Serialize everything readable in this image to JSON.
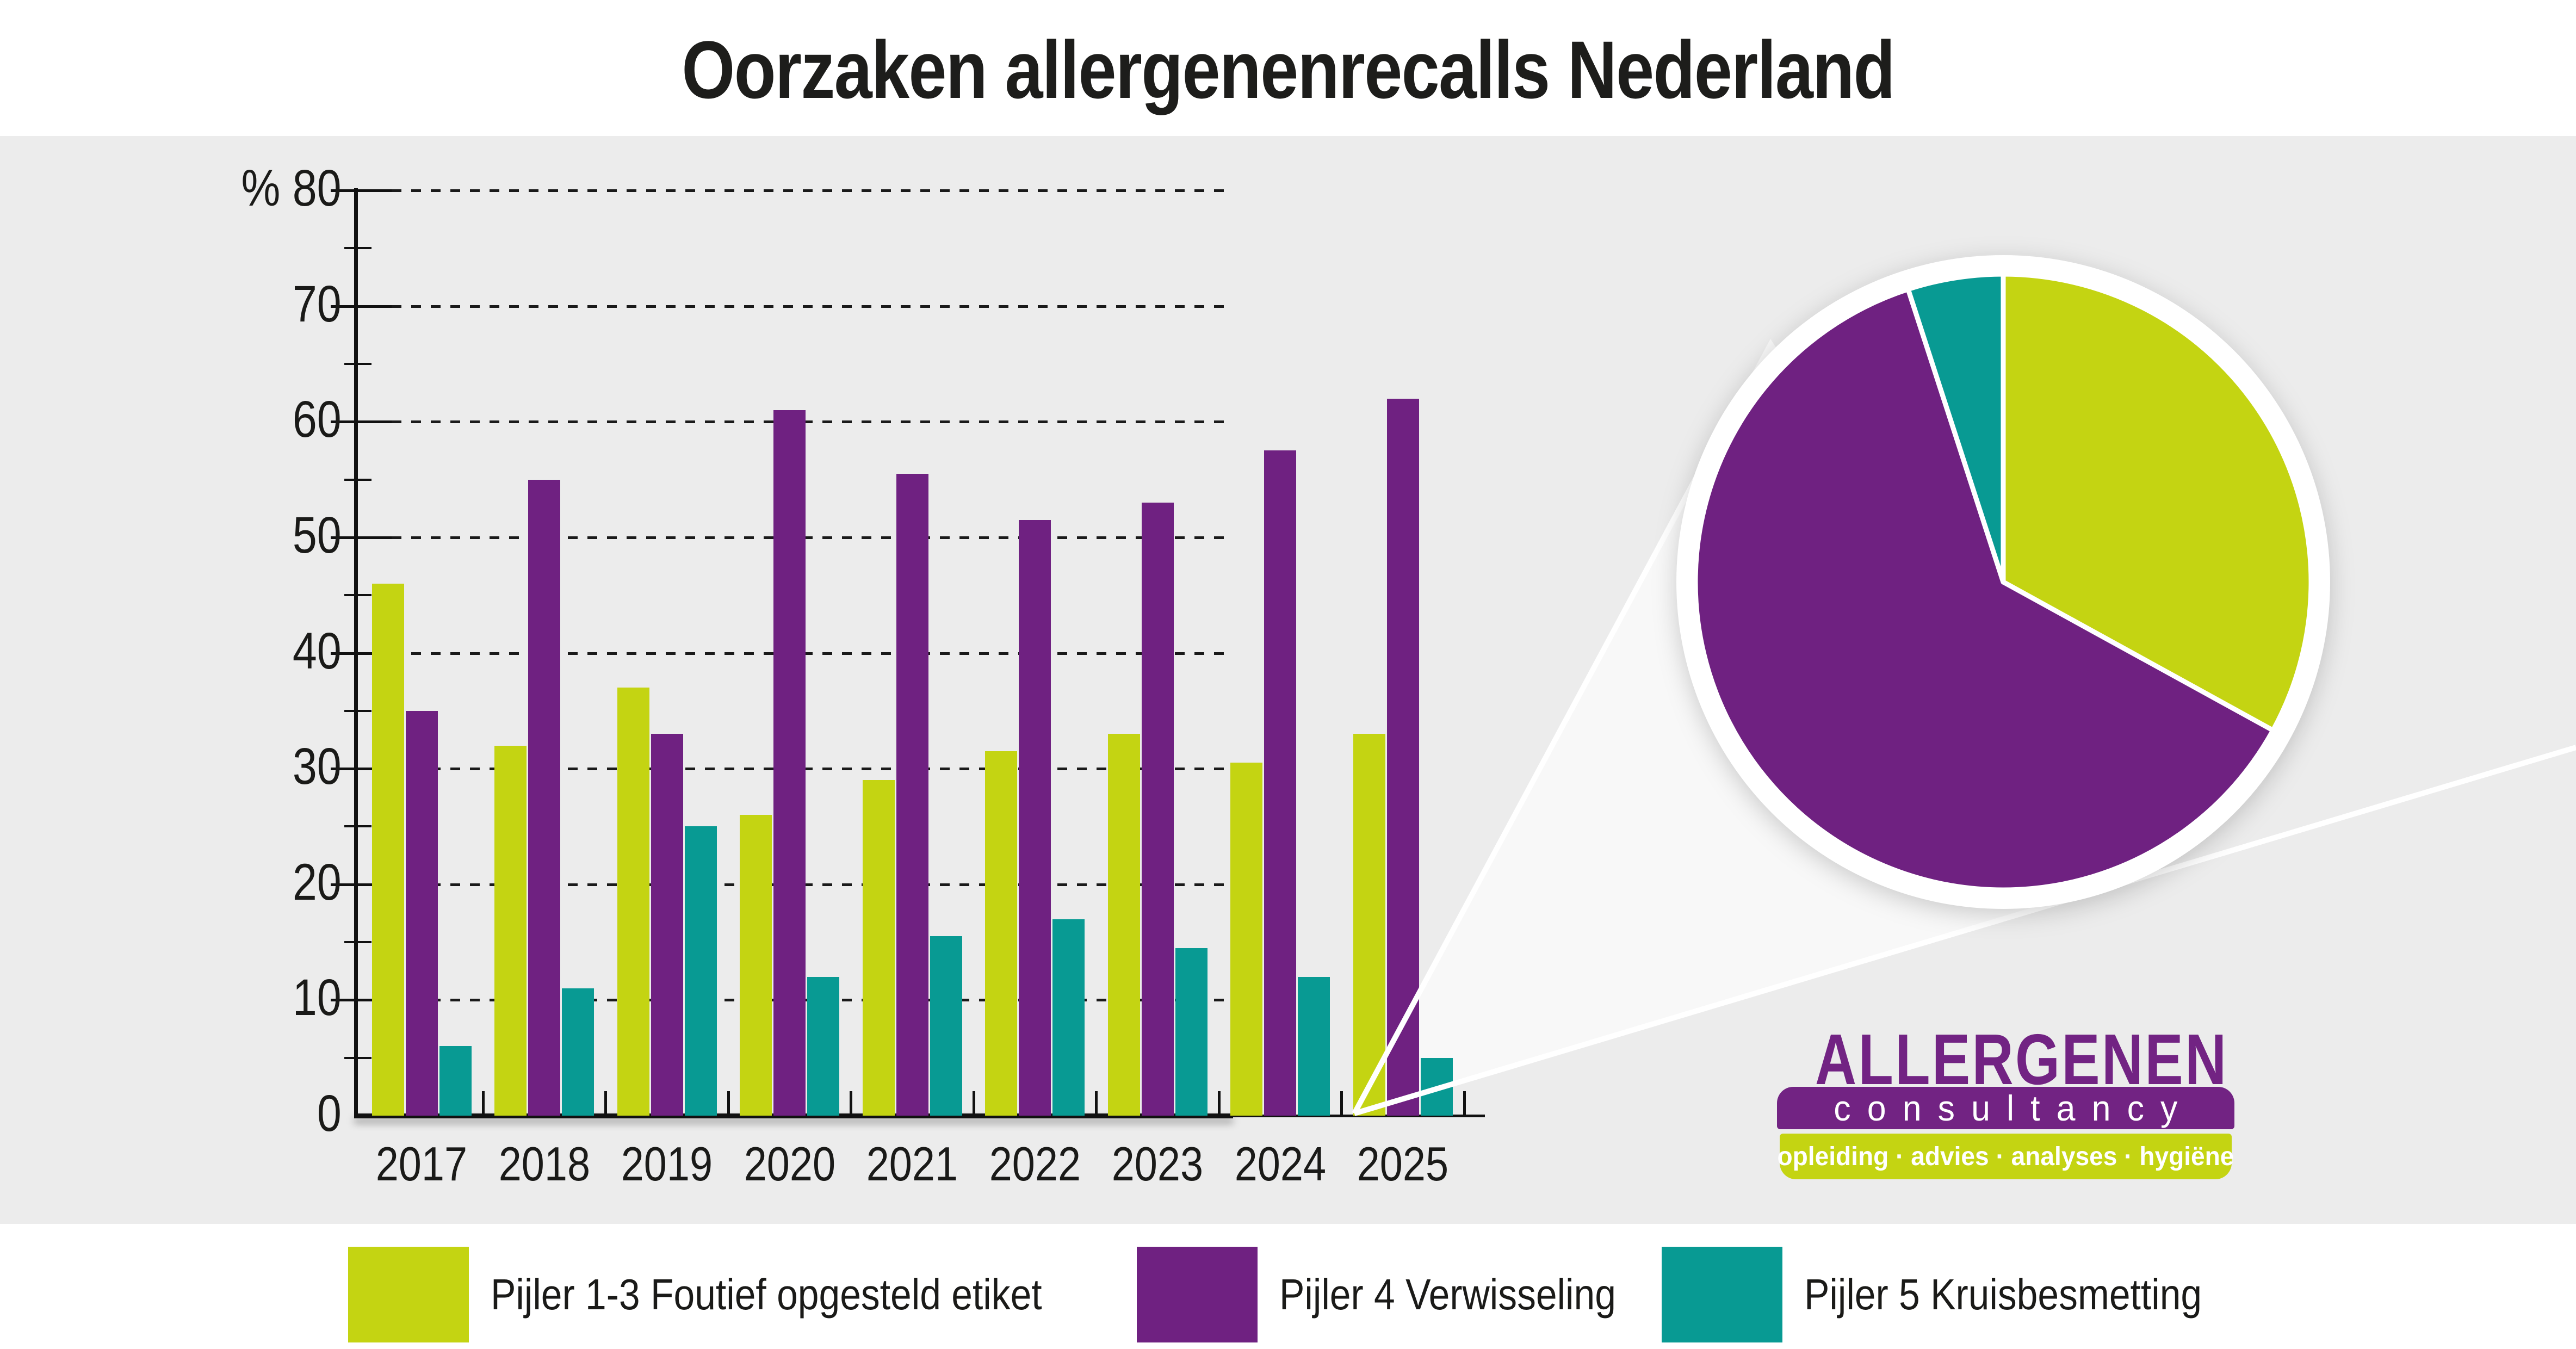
{
  "title": "Oorzaken allergenenrecalls Nederland",
  "colors": {
    "background_panel": "#ececec",
    "background_bands": "#ffffff",
    "series_yellow": "#c4d412",
    "series_purple": "#6f2181",
    "series_teal": "#089a93",
    "axis_black": "#111111",
    "text_dark": "#1a1a18",
    "logo_purple": "#722383",
    "logo_lime": "#c4d412",
    "wedge_fill": "#f8f8f8",
    "wedge_line": "#ffffff"
  },
  "y_axis": {
    "unit_label": "%",
    "tick_values": [
      0,
      10,
      20,
      30,
      40,
      50,
      60,
      70,
      80
    ],
    "minor_tick_step": 5,
    "max": 80
  },
  "chart_data": [
    {
      "type": "bar",
      "title": "Oorzaken allergenenrecalls Nederland",
      "categories": [
        "2017",
        "2018",
        "2019",
        "2020",
        "2021",
        "2022",
        "2023",
        "2024",
        "2025"
      ],
      "series": [
        {
          "name": "Pijler 1-3 Foutief opgesteld etiket",
          "color": "#c4d412",
          "values": [
            46,
            32,
            37,
            26,
            29,
            31.5,
            33,
            30.5,
            33
          ]
        },
        {
          "name": "Pijler 4 Verwisseling",
          "color": "#6f2181",
          "values": [
            35,
            55,
            33,
            61,
            55.5,
            51.5,
            53,
            57.5,
            62
          ]
        },
        {
          "name": "Pijler 5 Kruisbesmetting",
          "color": "#089a93",
          "values": [
            6,
            11,
            25,
            12,
            15.5,
            17,
            14.5,
            12,
            5
          ]
        }
      ],
      "xlabel": "",
      "ylabel": "%",
      "ylim": [
        0,
        80
      ],
      "grid": "dashed horizontal every 10, gridlines end before 2024 group",
      "legend_position": "bottom"
    },
    {
      "type": "pie",
      "description": "Uitvergroting 2025 (magnified via white wedge from 2025 bars)",
      "start_angle_deg": 0,
      "direction": "clockwise from 12 o'clock",
      "slices": [
        {
          "label": "Pijler 1-3 Foutief opgesteld etiket",
          "value": 33,
          "color": "#c4d412"
        },
        {
          "label": "Pijler 4 Verwisseling",
          "value": 62,
          "color": "#6f2181"
        },
        {
          "label": "Pijler 5 Kruisbesmetting",
          "value": 5,
          "color": "#089a93"
        }
      ]
    }
  ],
  "legend": {
    "items": [
      {
        "label": "Pijler 1-3 Foutief opgesteld etiket",
        "color": "#c4d412"
      },
      {
        "label": "Pijler 4 Verwisseling",
        "color": "#6f2181"
      },
      {
        "label": "Pijler 5 Kruisbesmetting",
        "color": "#089a93"
      }
    ]
  },
  "logo": {
    "brand": "ALLERGENEN",
    "sub": "c o n s u l t a n c y",
    "sub_plain": "consultancy",
    "tagline": "opleiding · advies · analyses · hygiëne"
  }
}
